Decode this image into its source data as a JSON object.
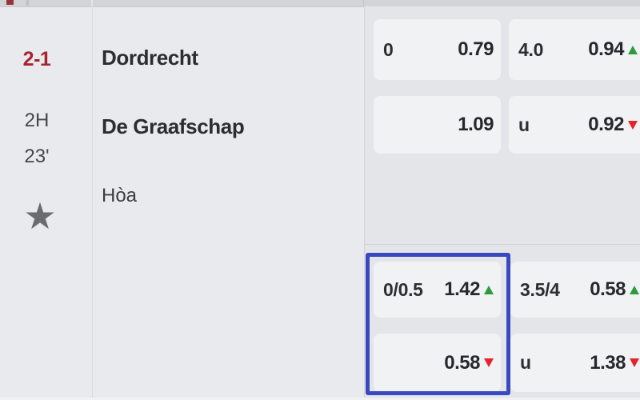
{
  "match": {
    "score": "2-1",
    "period": "2H",
    "minute": "23'",
    "home_team": "Dordrecht",
    "away_team": "De Graafschap",
    "draw_label": "Hòa"
  },
  "icons": {
    "favorite_star": "★"
  },
  "odds": {
    "sections": [
      {
        "rows": [
          {
            "cells": [
              {
                "line": "0",
                "price": "0.79",
                "trend": "none"
              },
              {
                "line": "4.0",
                "price": "0.94",
                "trend": "up"
              }
            ]
          },
          {
            "cells": [
              {
                "line": "",
                "price": "1.09",
                "trend": "none"
              },
              {
                "line": "u",
                "price": "0.92",
                "trend": "down"
              }
            ]
          }
        ]
      },
      {
        "highlighted_column": 1,
        "rows": [
          {
            "cells": [
              {
                "line": "0/0.5",
                "price": "1.42",
                "trend": "up"
              },
              {
                "line": "3.5/4",
                "price": "0.58",
                "trend": "up"
              }
            ]
          },
          {
            "cells": [
              {
                "line": "",
                "price": "0.58",
                "trend": "down"
              },
              {
                "line": "u",
                "price": "1.38",
                "trend": "down"
              }
            ]
          }
        ]
      }
    ]
  },
  "colors": {
    "accent_blue": "#3b49c0",
    "trend_up_green": "#2c9a3d",
    "trend_down_red": "#e62329",
    "score_red": "#a8242f"
  }
}
